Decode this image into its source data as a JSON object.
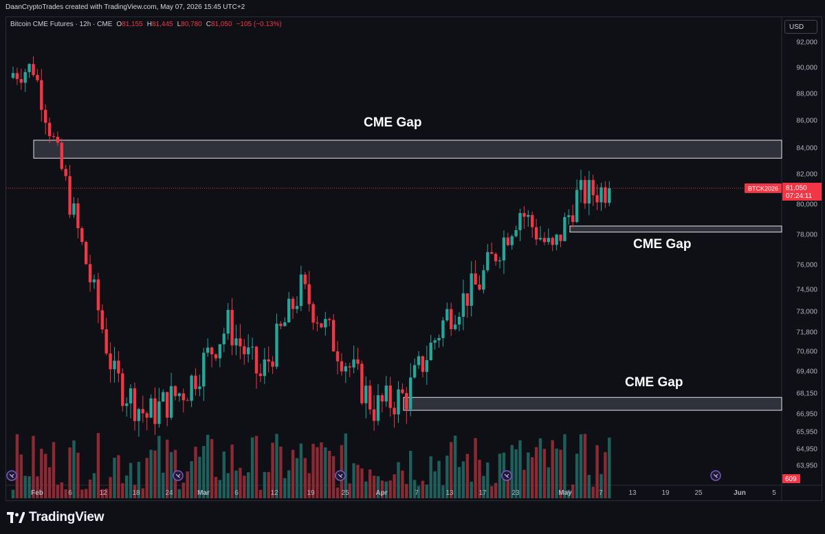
{
  "caption": "DaanCryptoTrades created with TradingView.com, May 07, 2026 15:45 UTC+2",
  "legend": {
    "symbol": "Bitcoin CME Futures · 12h · CME",
    "open_label": "O",
    "open": "81,155",
    "high_label": "H",
    "high": "81,445",
    "low_label": "L",
    "low": "80,780",
    "close_label": "C",
    "close": "81,050",
    "change": "−105 (−0.13%)"
  },
  "currency": "USD",
  "price_scale": {
    "ticks": [
      "92,000",
      "90,000",
      "88,000",
      "86,000",
      "84,000",
      "82,000",
      "80,000",
      "78,000",
      "76,000",
      "74,500",
      "73,000",
      "71,800",
      "70,600",
      "69,400",
      "68,150",
      "66,950",
      "65,950",
      "64,950",
      "63,950"
    ],
    "tick_values": [
      92000,
      90000,
      88000,
      86000,
      84000,
      82000,
      80000,
      78000,
      76000,
      74500,
      73000,
      71800,
      70600,
      69400,
      68150,
      66950,
      65950,
      64950,
      63950
    ],
    "last_price_label": "81,050",
    "countdown": "07:24:11",
    "symbol_tag": "BTCK2026",
    "volume_label": "609"
  },
  "time_axis": {
    "labels": [
      "Feb",
      "6",
      "12",
      "18",
      "24",
      "Mar",
      "6",
      "12",
      "19",
      "25",
      "Apr",
      "7",
      "13",
      "17",
      "23",
      "May",
      "7",
      "13",
      "19",
      "25",
      "Jun",
      "5"
    ],
    "bold": [
      "Feb",
      "Mar",
      "Apr",
      "May",
      "Jun"
    ]
  },
  "annotations": [
    {
      "label": "CME Gap",
      "top_price": 84550,
      "bottom_price": 83200
    },
    {
      "label": "CME Gap",
      "top_price": 78550,
      "bottom_price": 78150
    },
    {
      "label": "CME Gap",
      "top_price": 67900,
      "bottom_price": 67150
    }
  ],
  "colors": {
    "up": "#26a69a",
    "down": "#f23645",
    "volume_up": "#1e5f5c",
    "volume_down": "#8b2a33",
    "gap_fill": "#3b3e48",
    "price_tag": "#f23645",
    "event_icon": "#7e57c2"
  },
  "footer": {
    "brand": "TradingView"
  },
  "chart_data": {
    "type": "candlestick",
    "title": "Bitcoin CME Futures · 12h · CME",
    "timeframe": "12h",
    "ylim": [
      62900,
      92800
    ],
    "last_price": 81050,
    "segments": [
      {
        "n": 6,
        "from": 89500,
        "to": 90000
      },
      {
        "n": 6,
        "from": 90000,
        "to": 83300
      },
      {
        "n": 4,
        "from": 83300,
        "to": 79200
      },
      {
        "n": 10,
        "from": 79200,
        "to": 69000
      },
      {
        "n": 8,
        "from": 69000,
        "to": 66800
      },
      {
        "n": 10,
        "from": 66800,
        "to": 68500
      },
      {
        "n": 10,
        "from": 68500,
        "to": 72200
      },
      {
        "n": 8,
        "from": 72200,
        "to": 69000
      },
      {
        "n": 10,
        "from": 69000,
        "to": 74500
      },
      {
        "n": 8,
        "from": 74500,
        "to": 71200
      },
      {
        "n": 10,
        "from": 71200,
        "to": 67300
      },
      {
        "n": 8,
        "from": 67300,
        "to": 68000
      },
      {
        "n": 10,
        "from": 68000,
        "to": 72800
      },
      {
        "n": 8,
        "from": 72800,
        "to": 74900
      },
      {
        "n": 10,
        "from": 74900,
        "to": 79600
      },
      {
        "n": 8,
        "from": 79600,
        "to": 76800
      },
      {
        "n": 6,
        "from": 76800,
        "to": 80500
      },
      {
        "n": 8,
        "from": 80500,
        "to": 81050
      }
    ]
  }
}
